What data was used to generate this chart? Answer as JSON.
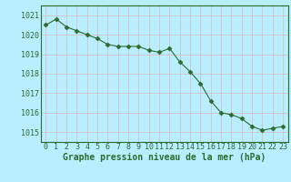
{
  "x": [
    0,
    1,
    2,
    3,
    4,
    5,
    6,
    7,
    8,
    9,
    10,
    11,
    12,
    13,
    14,
    15,
    16,
    17,
    18,
    19,
    20,
    21,
    22,
    23
  ],
  "y": [
    1020.5,
    1020.8,
    1020.4,
    1020.2,
    1020.0,
    1019.8,
    1019.5,
    1019.4,
    1019.4,
    1019.4,
    1019.2,
    1019.1,
    1019.3,
    1018.6,
    1018.1,
    1017.5,
    1016.6,
    1016.0,
    1015.9,
    1015.7,
    1015.3,
    1015.1,
    1015.2,
    1015.3
  ],
  "line_color": "#2d6a2d",
  "marker": "D",
  "marker_size": 2.5,
  "bg_color": "#b8eeff",
  "grid_color": "#d8b8b8",
  "title": "Graphe pression niveau de la mer (hPa)",
  "ylim_min": 1014.5,
  "ylim_max": 1021.5,
  "yticks": [
    1015,
    1016,
    1017,
    1018,
    1019,
    1020,
    1021
  ],
  "xticks": [
    0,
    1,
    2,
    3,
    4,
    5,
    6,
    7,
    8,
    9,
    10,
    11,
    12,
    13,
    14,
    15,
    16,
    17,
    18,
    19,
    20,
    21,
    22,
    23
  ],
  "title_color": "#2d6a2d",
  "title_fontsize": 7.0,
  "tick_fontsize": 6.0,
  "tick_color": "#2d6a2d",
  "spine_color": "#2d6a2d"
}
